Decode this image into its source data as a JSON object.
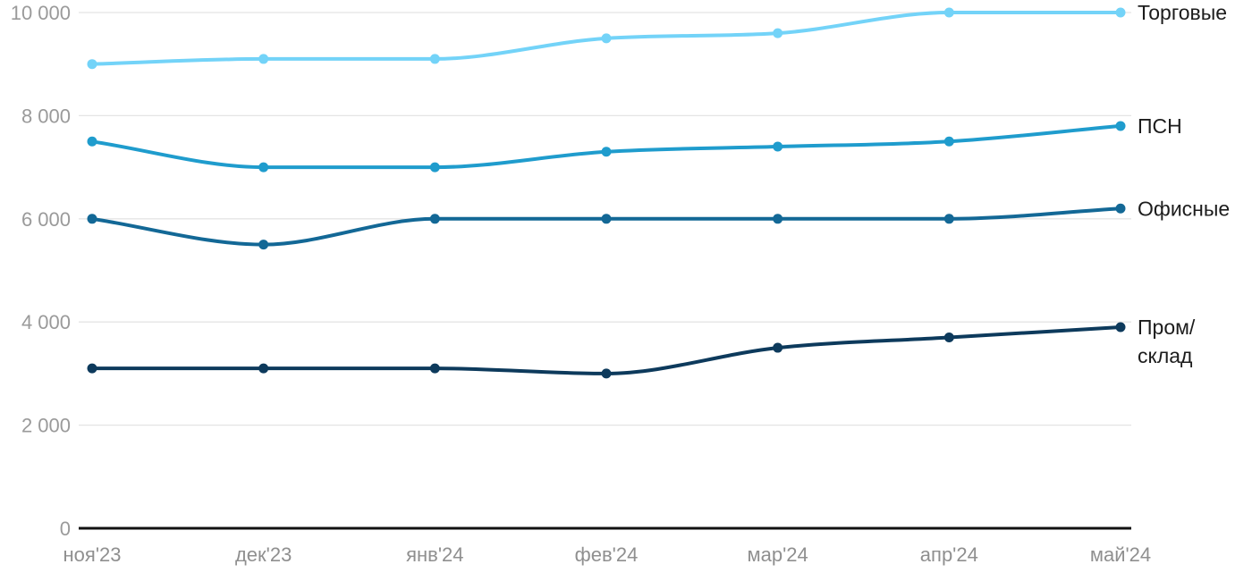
{
  "chart_data": {
    "type": "line",
    "title": "",
    "xlabel": "",
    "ylabel": "",
    "x_categories": [
      "ноя'23",
      "дек'23",
      "янв'24",
      "фев'24",
      "мар'24",
      "апр'24",
      "май'24"
    ],
    "ylim": [
      0,
      10000
    ],
    "y_ticks": [
      {
        "value": 0,
        "label": "0"
      },
      {
        "value": 2000,
        "label": "2 000"
      },
      {
        "value": 4000,
        "label": "4 000"
      },
      {
        "value": 6000,
        "label": "6 000"
      },
      {
        "value": 8000,
        "label": "8 000"
      },
      {
        "value": 10000,
        "label": "10 000"
      }
    ],
    "grid": "horizontal",
    "legend_position": "right-inline-at-line-end",
    "curve": "smooth-monotone",
    "series": [
      {
        "name": "Торговые",
        "label_lines": [
          "Торговые"
        ],
        "color": "#73d3f8",
        "values": [
          9000,
          9100,
          9100,
          9500,
          9600,
          10000,
          10000
        ]
      },
      {
        "name": "ПСН",
        "label_lines": [
          "ПСН"
        ],
        "color": "#1f9ccd",
        "values": [
          7500,
          7000,
          7000,
          7300,
          7400,
          7500,
          7800
        ]
      },
      {
        "name": "Офисные",
        "label_lines": [
          "Офисные"
        ],
        "color": "#136896",
        "values": [
          6000,
          5500,
          6000,
          6000,
          6000,
          6000,
          6200
        ]
      },
      {
        "name": "Пром/склад",
        "label_lines": [
          "Пром/",
          "склад"
        ],
        "color": "#0d3a5c",
        "values": [
          3100,
          3100,
          3100,
          3000,
          3500,
          3700,
          3900
        ]
      }
    ]
  },
  "styles": {
    "background": "#ffffff",
    "grid_color": "#e4e4e4",
    "axis_color": "#111111",
    "y_tick_color": "#9a9a9a",
    "x_tick_color": "#8f8f8f",
    "series_label_color": "#1c1c1c"
  }
}
